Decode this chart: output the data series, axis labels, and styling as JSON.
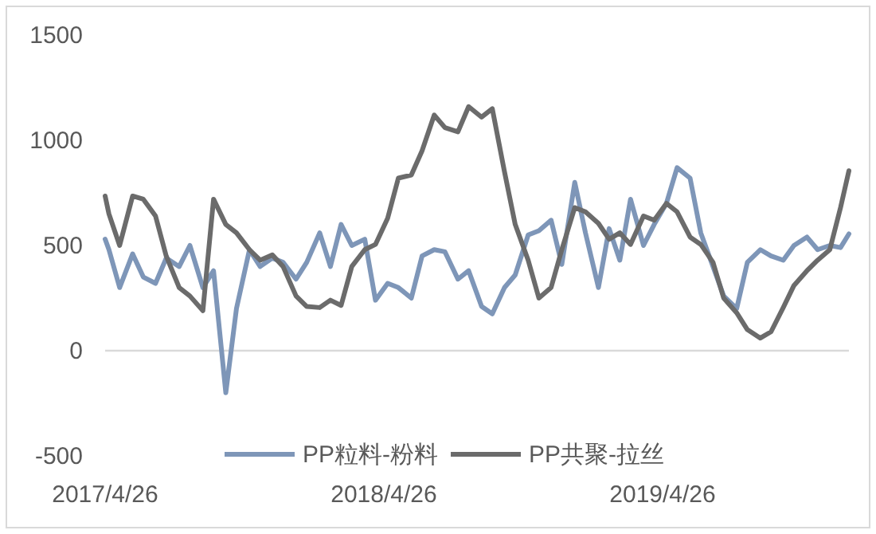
{
  "chart_data": {
    "type": "line",
    "x": [
      "2017-04-26",
      "2017-05-01",
      "2017-05-15",
      "2017-06-01",
      "2017-06-15",
      "2017-07-01",
      "2017-07-15",
      "2017-08-01",
      "2017-08-15",
      "2017-09-01",
      "2017-09-15",
      "2017-10-01",
      "2017-10-15",
      "2017-11-01",
      "2017-11-15",
      "2017-12-01",
      "2017-12-15",
      "2018-01-01",
      "2018-01-15",
      "2018-02-01",
      "2018-02-15",
      "2018-03-01",
      "2018-03-15",
      "2018-04-01",
      "2018-04-15",
      "2018-05-01",
      "2018-05-15",
      "2018-06-01",
      "2018-06-15",
      "2018-07-01",
      "2018-07-15",
      "2018-08-01",
      "2018-08-15",
      "2018-09-01",
      "2018-09-15",
      "2018-10-01",
      "2018-10-15",
      "2018-11-01",
      "2018-11-15",
      "2018-12-01",
      "2018-12-15",
      "2019-01-01",
      "2019-01-15",
      "2019-02-01",
      "2019-02-15",
      "2019-03-01",
      "2019-03-15",
      "2019-04-01",
      "2019-04-15",
      "2019-05-01",
      "2019-05-15",
      "2019-06-01",
      "2019-06-15",
      "2019-07-01",
      "2019-07-15",
      "2019-08-01",
      "2019-08-15",
      "2019-09-01",
      "2019-09-15",
      "2019-10-01",
      "2019-10-15",
      "2019-11-01",
      "2019-11-15",
      "2019-12-01",
      "2019-12-15",
      "2019-12-26"
    ],
    "series": [
      {
        "name": "PP粒料-粉料",
        "color": "#7e96b8",
        "values": [
          530,
          480,
          300,
          460,
          350,
          320,
          440,
          400,
          500,
          300,
          380,
          -200,
          200,
          480,
          400,
          440,
          420,
          340,
          420,
          560,
          400,
          600,
          500,
          530,
          240,
          320,
          300,
          250,
          450,
          480,
          470,
          340,
          380,
          210,
          175,
          300,
          360,
          550,
          570,
          620,
          410,
          800,
          560,
          300,
          580,
          430,
          720,
          500,
          600,
          700,
          870,
          820,
          560,
          400,
          260,
          200,
          420,
          480,
          450,
          430,
          500,
          540,
          480,
          500,
          490,
          555
        ]
      },
      {
        "name": "PP共聚-拉丝",
        "color": "#6b6b6b",
        "values": [
          735,
          650,
          500,
          735,
          720,
          640,
          450,
          300,
          260,
          190,
          720,
          600,
          560,
          480,
          430,
          455,
          400,
          260,
          210,
          205,
          240,
          215,
          400,
          480,
          505,
          630,
          820,
          835,
          950,
          1120,
          1060,
          1040,
          1160,
          1110,
          1150,
          850,
          600,
          430,
          250,
          300,
          480,
          680,
          660,
          605,
          530,
          560,
          505,
          640,
          620,
          700,
          660,
          540,
          505,
          420,
          250,
          180,
          100,
          60,
          90,
          205,
          310,
          380,
          430,
          480,
          680,
          855
        ]
      }
    ],
    "xlim": [
      "2017-04-26",
      "2019-12-26"
    ],
    "xticks": [
      {
        "value": "2017-04-26",
        "label": "2017/4/26"
      },
      {
        "value": "2018-04-26",
        "label": "2018/4/26"
      },
      {
        "value": "2019-04-26",
        "label": "2019/4/26"
      }
    ],
    "ylim": [
      -500,
      1500
    ],
    "yticks": [
      -500,
      0,
      500,
      1000,
      1500
    ],
    "ref_lines": [
      {
        "axis": "y",
        "value": 0,
        "color": "#d9d9d9"
      }
    ],
    "grid": false,
    "legend": "bottom"
  }
}
